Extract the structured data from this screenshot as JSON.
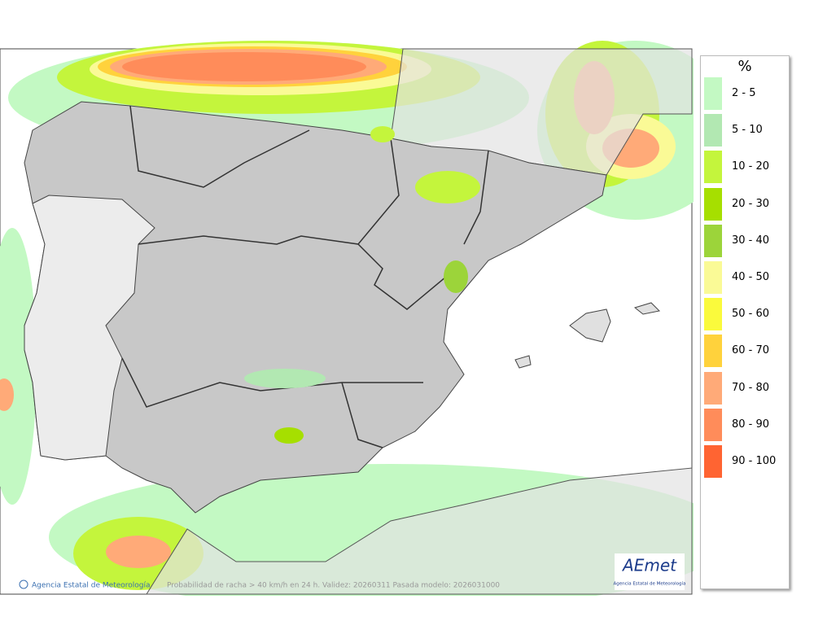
{
  "legend": {
    "title": "%",
    "items": [
      {
        "label": "2 - 5",
        "color": "#c3f9c3"
      },
      {
        "label": "5 - 10",
        "color": "#b2e8b2"
      },
      {
        "label": "10 - 20",
        "color": "#c4f53c"
      },
      {
        "label": "20 - 30",
        "color": "#a6df00"
      },
      {
        "label": "30 - 40",
        "color": "#9cd43a"
      },
      {
        "label": "40 - 50",
        "color": "#fafa96"
      },
      {
        "label": "50 - 60",
        "color": "#fafa3c"
      },
      {
        "label": "60 - 70",
        "color": "#ffd23c"
      },
      {
        "label": "70 - 80",
        "color": "#ffaa78"
      },
      {
        "label": "80 - 90",
        "color": "#ff8c5a"
      },
      {
        "label": "90 - 100",
        "color": "#ff6432"
      }
    ]
  },
  "footer": {
    "credit": "Agencia Estatal de Meteorología",
    "caption": "Probabilidad de racha > 40 km/h en 24 h. Validez: 20260311 Pasada modelo: 2026031000"
  },
  "logo": {
    "name": "AEmet",
    "subtitle": "Agencia Estatal de Meteorología"
  }
}
